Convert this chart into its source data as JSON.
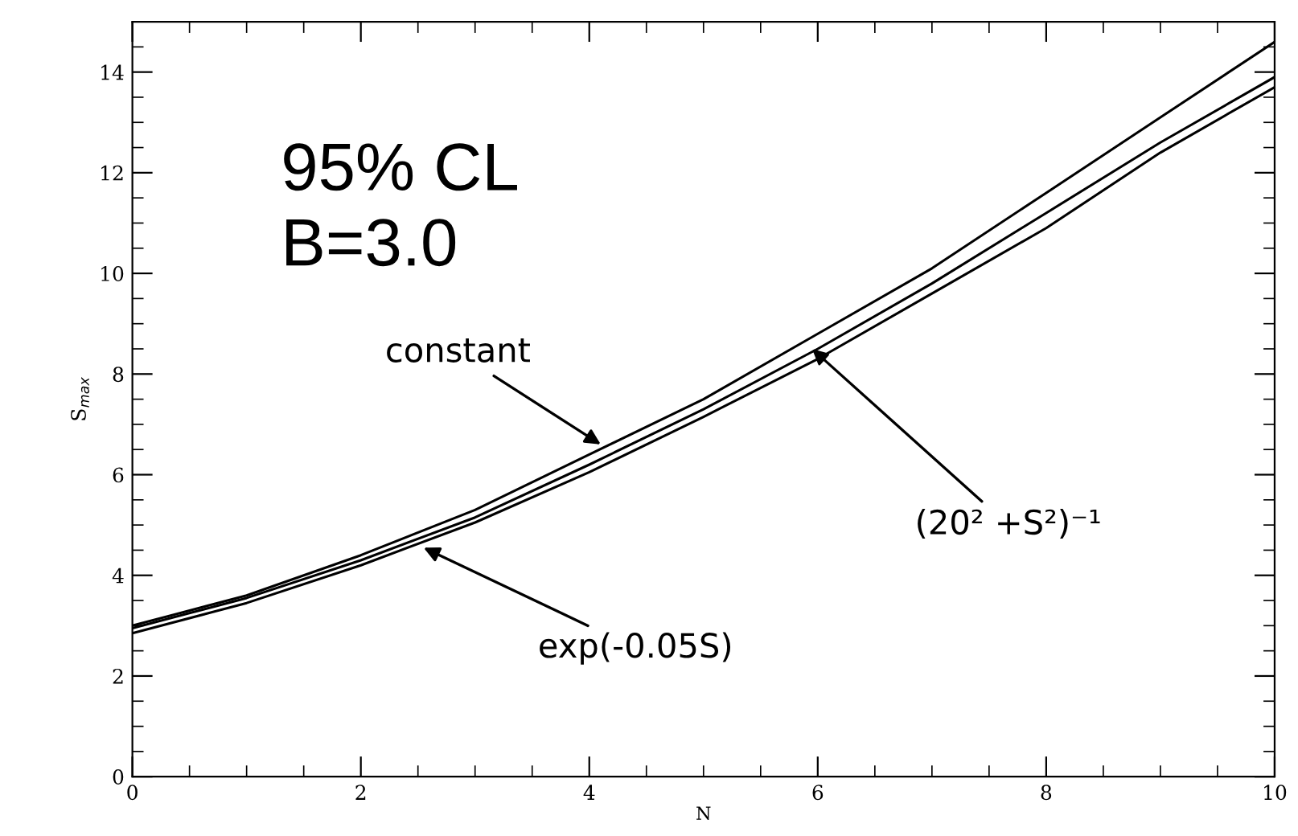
{
  "chart_data": {
    "type": "line",
    "xlabel": "N",
    "ylabel": "S$_{max}$",
    "x": [
      0,
      1,
      2,
      3,
      4,
      5,
      6,
      7,
      8,
      9,
      10
    ],
    "series": [
      {
        "color": "#000000",
        "values": [
          3.0,
          3.6,
          4.4,
          5.3,
          6.4,
          7.5,
          8.8,
          10.1,
          11.6,
          13.1,
          14.6
        ]
      },
      {
        "color": "#000000",
        "values": [
          2.95,
          3.55,
          4.3,
          5.15,
          6.2,
          7.3,
          8.5,
          9.8,
          11.2,
          12.6,
          13.9
        ]
      },
      {
        "color": "#000000",
        "values": [
          2.85,
          3.45,
          4.2,
          5.05,
          6.05,
          7.15,
          8.3,
          9.6,
          10.9,
          12.4,
          13.7
        ]
      }
    ],
    "xlim": [
      0,
      10
    ],
    "ylim": [
      0,
      15
    ],
    "xticks": [
      0,
      2,
      4,
      6,
      8,
      10
    ],
    "yticks": [
      0,
      2,
      4,
      6,
      8,
      10,
      12,
      14
    ],
    "grid": false,
    "legend": false,
    "marker": "none",
    "line_style": "solid",
    "annotations": [
      "95% CL",
      "B=3.0",
      {
        "text": "constant",
        "x": 4.1,
        "y": 6.6
      },
      {
        "text": "(20² +S²)⁻¹",
        "x": 5.95,
        "y": 8.5
      },
      {
        "text": "exp(-0.05S)",
        "x": 2.55,
        "y": 4.55
      }
    ]
  }
}
